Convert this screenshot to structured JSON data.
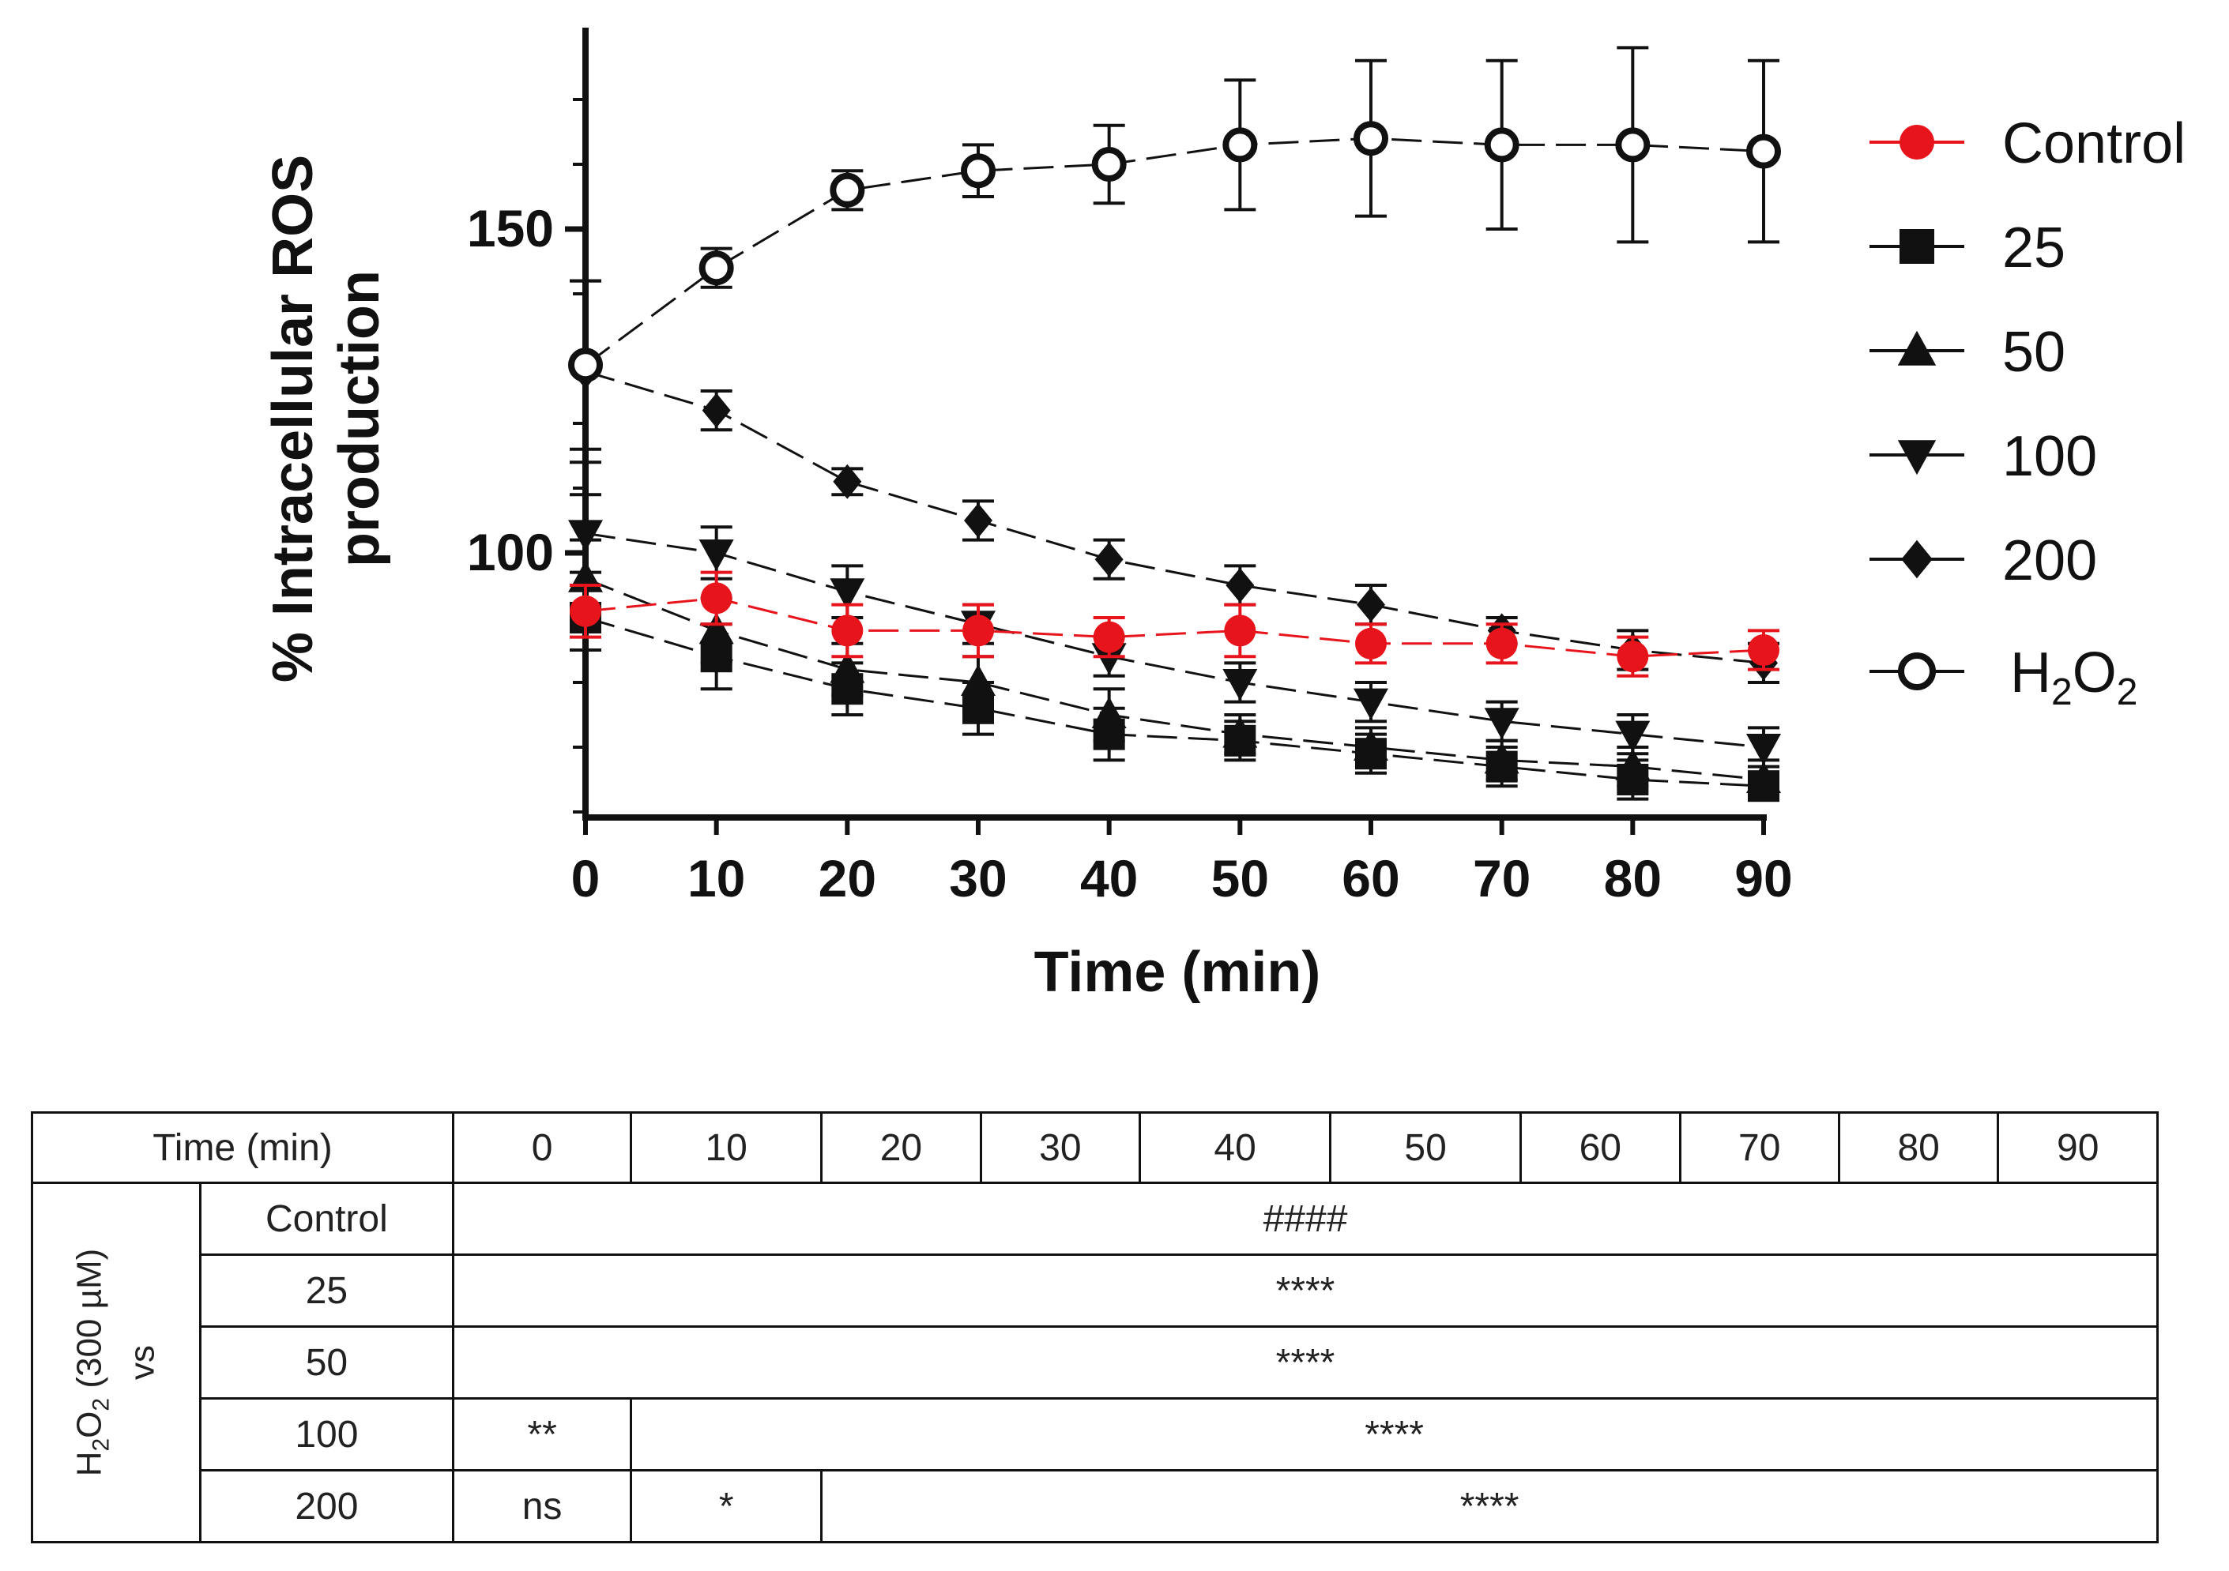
{
  "chart_data": {
    "type": "line",
    "xlabel": "Time (min)",
    "ylabel_line1": "% Intracellular ROS",
    "ylabel_line2": "production",
    "x": [
      0,
      10,
      20,
      30,
      40,
      50,
      60,
      70,
      80,
      90
    ],
    "xlim": [
      0,
      90
    ],
    "ylim": [
      60,
      180
    ],
    "yticks": [
      100,
      150
    ],
    "xticks": [
      0,
      10,
      20,
      30,
      40,
      50,
      60,
      70,
      80,
      90
    ],
    "legend_position": "right",
    "series": [
      {
        "name": "Control",
        "marker": "circle-filled",
        "color": "#e8141c",
        "values": [
          91,
          93,
          88,
          88,
          87,
          88,
          86,
          86,
          84,
          85
        ],
        "errors": [
          4,
          4,
          4,
          4,
          3,
          4,
          3,
          3,
          3,
          3
        ]
      },
      {
        "name": "25",
        "marker": "square",
        "color": "#111111",
        "values": [
          90,
          84,
          79,
          76,
          72,
          71,
          69,
          67,
          65,
          64
        ],
        "errors": [
          5,
          5,
          4,
          4,
          4,
          3,
          3,
          3,
          3,
          2
        ]
      },
      {
        "name": "50",
        "marker": "triangle-up",
        "color": "#111111",
        "values": [
          96,
          88,
          82,
          80,
          75,
          72,
          70,
          68,
          67,
          65
        ],
        "errors": [
          6,
          5,
          4,
          4,
          4,
          3,
          3,
          3,
          3,
          3
        ]
      },
      {
        "name": "100",
        "marker": "triangle-down",
        "color": "#111111",
        "values": [
          103,
          100,
          94,
          89,
          84,
          80,
          77,
          74,
          72,
          70
        ],
        "errors": [
          6,
          4,
          4,
          3,
          3,
          3,
          3,
          3,
          3,
          3
        ]
      },
      {
        "name": "200",
        "marker": "diamond",
        "color": "#111111",
        "values": [
          128,
          122,
          111,
          105,
          99,
          95,
          92,
          88,
          85,
          83
        ],
        "errors": [
          14,
          3,
          2,
          3,
          3,
          3,
          3,
          2,
          3,
          3
        ]
      },
      {
        "name": "H2O2",
        "marker": "circle-open",
        "color": "#111111",
        "values": [
          129,
          144,
          156,
          159,
          160,
          163,
          164,
          163,
          163,
          162
        ],
        "errors": [
          13,
          3,
          3,
          4,
          6,
          10,
          12,
          13,
          15,
          14
        ]
      }
    ]
  },
  "legend": {
    "items": [
      "Control",
      "25",
      "50",
      "100",
      "200"
    ],
    "h2o2_main": "H",
    "h2o2_sub1": "2",
    "h2o2_mid": "O",
    "h2o2_sub2": "2"
  },
  "table": {
    "time_header": "Time (min)",
    "time_values": [
      "0",
      "10",
      "20",
      "30",
      "40",
      "50",
      "60",
      "70",
      "80",
      "90"
    ],
    "row_group_label_prefix": "H",
    "row_group_label_sub": "2",
    "row_group_label_mid": "O",
    "row_group_label_sub2": "2",
    "row_group_label_suffix": " (300 µM)",
    "row_group_label_vs": "vs",
    "rows": [
      {
        "label": "Control",
        "cells": [
          "####"
        ]
      },
      {
        "label": "25",
        "cells": [
          "****"
        ]
      },
      {
        "label": "50",
        "cells": [
          "****"
        ]
      },
      {
        "label": "100",
        "cells": [
          "**",
          "****"
        ]
      },
      {
        "label": "200",
        "cells": [
          "ns",
          "*",
          "****"
        ]
      }
    ]
  }
}
